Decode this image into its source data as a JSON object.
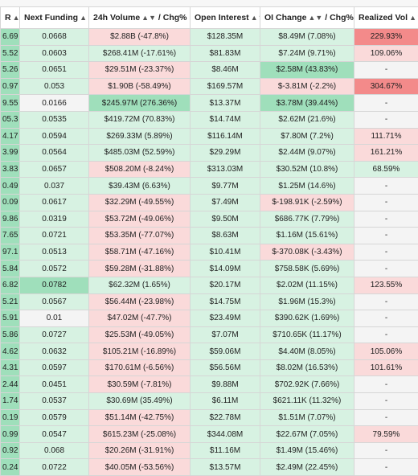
{
  "header": {
    "col0": "R",
    "col1": "Next Funding",
    "col2": "24h Volume",
    "col2_sep": " / Chg%",
    "col3": "Open Interest",
    "col4": "OI Change",
    "col4_sep": " / Chg%",
    "col5": "Realized Vol"
  },
  "colors": {
    "green_strong": "#5ccb8f",
    "green_mid": "#9fdfbb",
    "green_light": "#d7f2e2",
    "red_strong": "#f38a8a",
    "red_light": "#fadada",
    "neutral": "#f4f4f4"
  },
  "rows": [
    [
      "6.69",
      "0.0668",
      "$2.88B (-47.8%)",
      "$128.35M",
      "$8.49M (7.08%)",
      "229.93%"
    ],
    [
      "5.52",
      "0.0603",
      "$268.41M (-17.61%)",
      "$81.83M",
      "$7.24M (9.71%)",
      "109.06%"
    ],
    [
      "5.26",
      "0.0651",
      "$29.51M (-23.37%)",
      "$8.46M",
      "$2.58M (43.83%)",
      "-"
    ],
    [
      "0.97",
      "0.053",
      "$1.90B (-58.49%)",
      "$169.57M",
      "$-3.81M (-2.2%)",
      "304.67%"
    ],
    [
      "9.55",
      "0.0166",
      "$245.97M (276.36%)",
      "$13.37M",
      "$3.78M (39.44%)",
      "-"
    ],
    [
      "05.3",
      "0.0535",
      "$419.72M (70.83%)",
      "$14.74M",
      "$2.62M (21.6%)",
      "-"
    ],
    [
      "4.17",
      "0.0594",
      "$269.33M (5.89%)",
      "$116.14M",
      "$7.80M (7.2%)",
      "111.71%"
    ],
    [
      "3.99",
      "0.0564",
      "$485.03M (52.59%)",
      "$29.29M",
      "$2.44M (9.07%)",
      "161.21%"
    ],
    [
      "3.83",
      "0.0657",
      "$508.20M (-8.24%)",
      "$313.03M",
      "$30.52M (10.8%)",
      "68.59%"
    ],
    [
      "0.49",
      "0.037",
      "$39.43M (6.63%)",
      "$9.77M",
      "$1.25M (14.6%)",
      "-"
    ],
    [
      "0.09",
      "0.0617",
      "$32.29M (-49.55%)",
      "$7.49M",
      "$-198.91K (-2.59%)",
      "-"
    ],
    [
      "9.86",
      "0.0319",
      "$53.72M (-49.06%)",
      "$9.50M",
      "$686.77K (7.79%)",
      "-"
    ],
    [
      "7.65",
      "0.0721",
      "$53.35M (-77.07%)",
      "$8.63M",
      "$1.16M (15.61%)",
      "-"
    ],
    [
      "97.1",
      "0.0513",
      "$58.71M (-47.16%)",
      "$10.41M",
      "$-370.08K (-3.43%)",
      "-"
    ],
    [
      "5.84",
      "0.0572",
      "$59.28M (-31.88%)",
      "$14.09M",
      "$758.58K (5.69%)",
      "-"
    ],
    [
      "6.82",
      "0.0782",
      "$62.32M (1.65%)",
      "$20.17M",
      "$2.02M (11.15%)",
      "123.55%"
    ],
    [
      "5.21",
      "0.0567",
      "$56.44M (-23.98%)",
      "$14.75M",
      "$1.96M (15.3%)",
      "-"
    ],
    [
      "5.91",
      "0.01",
      "$47.02M (-47.7%)",
      "$23.49M",
      "$390.62K (1.69%)",
      "-"
    ],
    [
      "5.86",
      "0.0727",
      "$25.53M (-49.05%)",
      "$7.07M",
      "$710.65K (11.17%)",
      "-"
    ],
    [
      "4.62",
      "0.0632",
      "$105.21M (-16.89%)",
      "$59.06M",
      "$4.40M (8.05%)",
      "105.06%"
    ],
    [
      "4.31",
      "0.0597",
      "$170.61M (-6.56%)",
      "$56.56M",
      "$8.02M (16.53%)",
      "101.61%"
    ],
    [
      "2.44",
      "0.0451",
      "$30.59M (-7.81%)",
      "$9.88M",
      "$702.92K (7.66%)",
      "-"
    ],
    [
      "1.74",
      "0.0537",
      "$30.69M (35.49%)",
      "$6.11M",
      "$621.11K (11.32%)",
      "-"
    ],
    [
      "0.19",
      "0.0579",
      "$51.14M (-42.75%)",
      "$22.78M",
      "$1.51M (7.07%)",
      "-"
    ],
    [
      "0.99",
      "0.0547",
      "$615.23M (-25.08%)",
      "$344.08M",
      "$22.67M (7.05%)",
      "79.59%"
    ],
    [
      "0.92",
      "0.068",
      "$20.26M (-31.91%)",
      "$11.16M",
      "$1.49M (15.46%)",
      "-"
    ],
    [
      "0.24",
      "0.0722",
      "$40.05M (-53.56%)",
      "$13.57M",
      "$2.49M (22.45%)",
      "-"
    ]
  ],
  "shades": [
    [
      "gm",
      "gl",
      "rl",
      "gl",
      "gl",
      "rs"
    ],
    [
      "gm",
      "gl",
      "gl",
      "gl",
      "gl",
      "rl"
    ],
    [
      "gm",
      "gl",
      "rl",
      "gl",
      "gm",
      "n"
    ],
    [
      "gm",
      "gl",
      "rl",
      "gl",
      "rl",
      "rs"
    ],
    [
      "gm",
      "n",
      "gm",
      "gl",
      "gm",
      "n"
    ],
    [
      "gm",
      "gl",
      "gl",
      "gl",
      "gl",
      "n"
    ],
    [
      "gm",
      "gl",
      "gl",
      "gl",
      "gl",
      "rl"
    ],
    [
      "gm",
      "gl",
      "gl",
      "gl",
      "gl",
      "rl"
    ],
    [
      "gm",
      "gl",
      "rl",
      "gl",
      "gl",
      "gl"
    ],
    [
      "gm",
      "gl",
      "gl",
      "gl",
      "gl",
      "n"
    ],
    [
      "gm",
      "gl",
      "rl",
      "gl",
      "rl",
      "n"
    ],
    [
      "gm",
      "gl",
      "rl",
      "gl",
      "gl",
      "n"
    ],
    [
      "gm",
      "gl",
      "rl",
      "gl",
      "gl",
      "n"
    ],
    [
      "gm",
      "gl",
      "rl",
      "gl",
      "rl",
      "n"
    ],
    [
      "gm",
      "gl",
      "rl",
      "gl",
      "gl",
      "n"
    ],
    [
      "gm",
      "gm",
      "gl",
      "gl",
      "gl",
      "rl"
    ],
    [
      "gm",
      "gl",
      "rl",
      "gl",
      "gl",
      "n"
    ],
    [
      "gm",
      "n",
      "rl",
      "gl",
      "gl",
      "n"
    ],
    [
      "gm",
      "gl",
      "rl",
      "gl",
      "gl",
      "n"
    ],
    [
      "gm",
      "gl",
      "rl",
      "gl",
      "gl",
      "rl"
    ],
    [
      "gm",
      "gl",
      "rl",
      "gl",
      "gl",
      "rl"
    ],
    [
      "gm",
      "gl",
      "rl",
      "gl",
      "gl",
      "n"
    ],
    [
      "gm",
      "gl",
      "gl",
      "gl",
      "gl",
      "n"
    ],
    [
      "gm",
      "gl",
      "rl",
      "gl",
      "gl",
      "n"
    ],
    [
      "gm",
      "gl",
      "rl",
      "gl",
      "gl",
      "rl"
    ],
    [
      "gm",
      "gl",
      "rl",
      "gl",
      "gl",
      "n"
    ],
    [
      "gm",
      "gl",
      "rl",
      "gl",
      "gl",
      "n"
    ]
  ]
}
